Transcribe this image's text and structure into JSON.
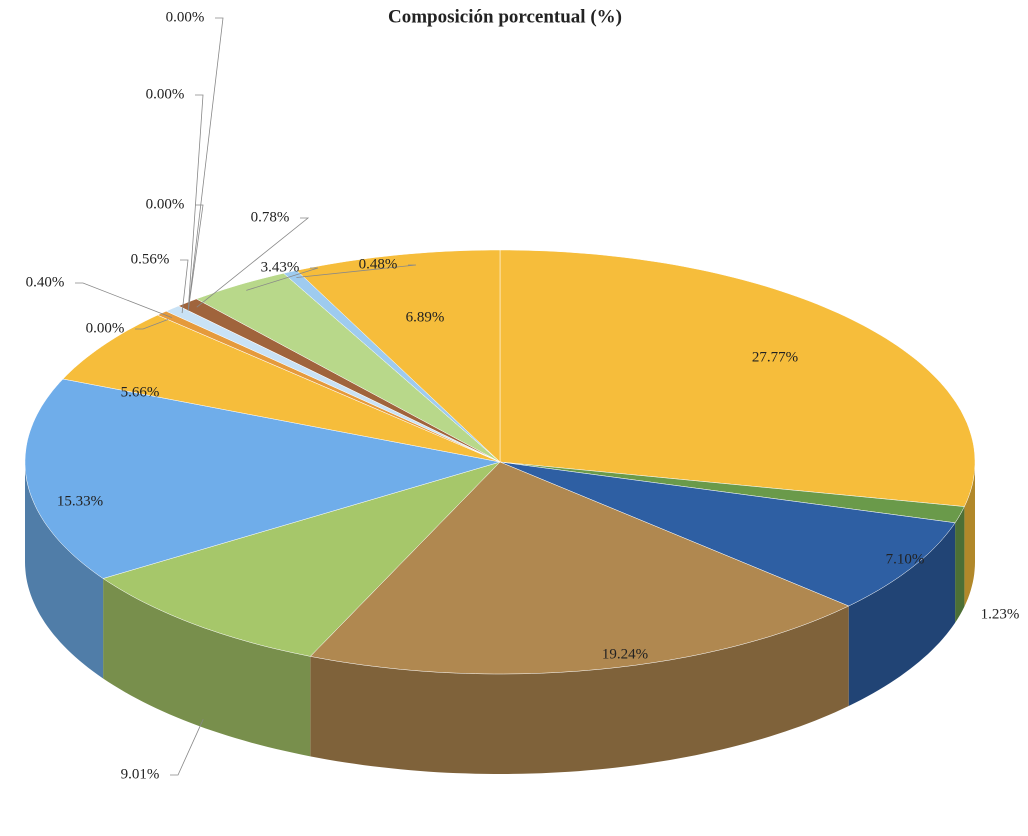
{
  "chart_data": {
    "type": "pie",
    "title": "Composición porcentual (%)",
    "values": [
      27.77,
      1.23,
      7.1,
      19.24,
      9.01,
      15.33,
      5.66,
      0.0,
      0.4,
      0.56,
      0.0,
      0.0,
      0.0,
      0.78,
      3.43,
      0.48,
      6.89
    ],
    "value_labels": [
      "27.77%",
      "1.23%",
      "7.10%",
      "19.24%",
      "9.01%",
      "15.33%",
      "5.66%",
      "0.00%",
      "0.40%",
      "0.56%",
      "0.00%",
      "0.00%",
      "0.00%",
      "0.78%",
      "3.43%",
      "0.48%",
      "6.89%"
    ],
    "colors": [
      "#f6bd3b",
      "#6a9a4a",
      "#2e5fa3",
      "#b08850",
      "#a6c76a",
      "#6fadea",
      "#f6bd3b",
      "#5e8f3f",
      "#e59a3c",
      "#c9e2f5",
      "#f6bd3b",
      "#6a9a4a",
      "#2e5fa3",
      "#a0643c",
      "#b8d88a",
      "#9ecbef",
      "#f6bd3b"
    ]
  }
}
